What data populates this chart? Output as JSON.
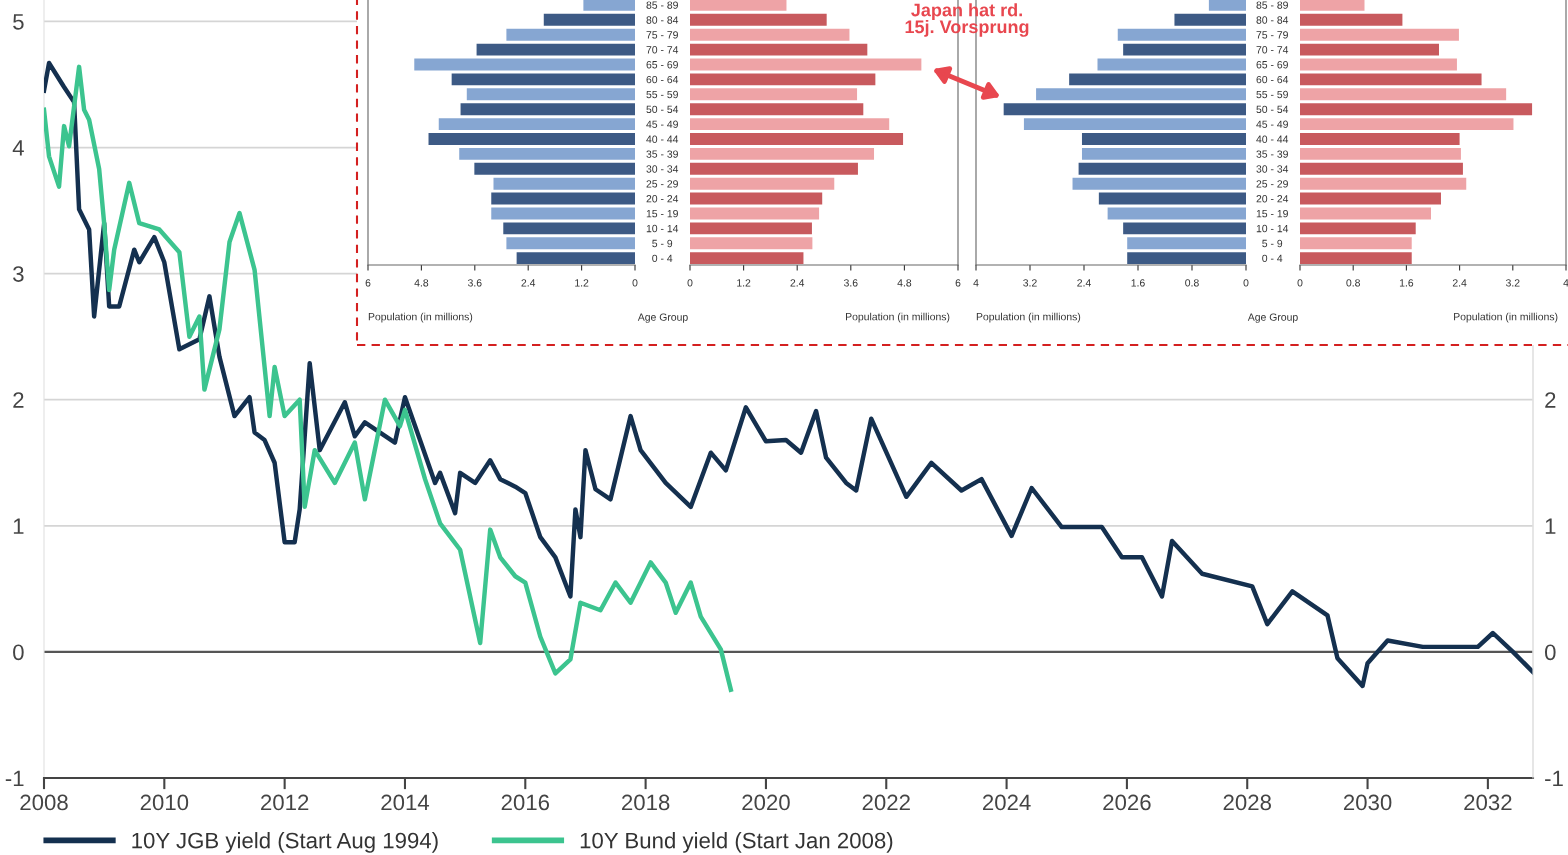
{
  "chart_data": [
    {
      "type": "line",
      "xlim": [
        "2008-01",
        "2032-10"
      ],
      "xticks": [
        "2008",
        "2010",
        "2012",
        "2014",
        "2016",
        "2018",
        "2020",
        "2022",
        "2024",
        "2026",
        "2028",
        "2030",
        "2032"
      ],
      "ylim": [
        -1,
        5.17
      ],
      "yticks": [
        -1,
        0,
        1,
        2,
        3,
        4,
        5
      ],
      "y2lim": [
        -1,
        5.17
      ],
      "y2ticks": [
        -1,
        0,
        1,
        2
      ],
      "grid": "y",
      "legend": "bottom",
      "line_style": "solid",
      "ref_lines": [
        {
          "axis": "y",
          "value": 0,
          "color": "#555555"
        }
      ],
      "annotations": [
        "Japan hat rd.\n15j. Vorsprung"
      ],
      "series": [
        {
          "name": "10Y JGB yield (Start Aug 1994)",
          "color": "#14304f",
          "x": [
            "2008-01",
            "2008-02",
            "2008-05",
            "2008-07",
            "2008-08",
            "2008-10",
            "2008-11",
            "2009-01",
            "2009-02",
            "2009-04",
            "2009-07",
            "2009-08",
            "2009-11",
            "2010-01",
            "2010-04",
            "2010-08",
            "2010-10",
            "2010-12",
            "2011-03",
            "2011-06",
            "2011-07",
            "2011-09",
            "2011-11",
            "2012-01",
            "2012-03",
            "2012-04",
            "2012-06",
            "2012-08",
            "2013-01",
            "2013-03",
            "2013-05",
            "2013-11",
            "2014-01",
            "2014-04",
            "2014-07",
            "2014-08",
            "2014-11",
            "2014-12",
            "2015-03",
            "2015-06",
            "2015-08",
            "2015-11",
            "2016-01",
            "2016-04",
            "2016-07",
            "2016-10",
            "2016-11",
            "2016-12",
            "2017-01",
            "2017-03",
            "2017-06",
            "2017-10",
            "2017-12",
            "2018-05",
            "2018-10",
            "2019-02",
            "2019-05",
            "2019-09",
            "2020-01",
            "2020-05",
            "2020-08",
            "2020-11",
            "2021-01",
            "2021-05",
            "2021-07",
            "2021-10",
            "2022-05",
            "2022-10",
            "2023-04",
            "2023-08",
            "2024-02",
            "2024-06",
            "2024-12",
            "2025-08",
            "2025-12",
            "2026-04",
            "2026-08",
            "2026-10",
            "2027-04",
            "2028-02",
            "2028-05",
            "2028-10",
            "2029-05",
            "2029-07",
            "2029-12",
            "2030-01",
            "2030-05",
            "2030-12",
            "2031-11",
            "2032-02",
            "2032-06",
            "2032-10"
          ],
          "values": [
            4.45,
            4.67,
            4.48,
            4.36,
            3.51,
            3.35,
            2.66,
            3.4,
            2.74,
            2.74,
            3.19,
            3.09,
            3.29,
            3.09,
            2.4,
            2.48,
            2.82,
            2.34,
            1.87,
            2.02,
            1.74,
            1.68,
            1.5,
            0.87,
            0.87,
            1.13,
            2.29,
            1.6,
            1.98,
            1.71,
            1.82,
            1.66,
            2.02,
            1.68,
            1.34,
            1.42,
            1.1,
            1.42,
            1.34,
            1.52,
            1.37,
            1.31,
            1.26,
            0.91,
            0.75,
            0.44,
            1.13,
            0.91,
            1.6,
            1.29,
            1.21,
            1.87,
            1.6,
            1.34,
            1.15,
            1.58,
            1.44,
            1.94,
            1.67,
            1.68,
            1.58,
            1.91,
            1.54,
            1.34,
            1.28,
            1.85,
            1.23,
            1.5,
            1.28,
            1.37,
            0.92,
            1.3,
            0.99,
            0.99,
            0.75,
            0.75,
            0.44,
            0.88,
            0.62,
            0.52,
            0.22,
            0.48,
            0.29,
            -0.05,
            -0.27,
            -0.09,
            0.09,
            0.04,
            0.04,
            0.15,
            0.0,
            -0.16
          ]
        },
        {
          "name": "10Y Bund yield (Start Jan 2008)",
          "color": "#3cc48f",
          "x": [
            "2008-01",
            "2008-02",
            "2008-04",
            "2008-05",
            "2008-06",
            "2008-08",
            "2008-09",
            "2008-10",
            "2008-12",
            "2009-01",
            "2009-02",
            "2009-03",
            "2009-06",
            "2009-08",
            "2009-12",
            "2010-04",
            "2010-06",
            "2010-08",
            "2010-09",
            "2010-12",
            "2011-02",
            "2011-04",
            "2011-07",
            "2011-09",
            "2011-10",
            "2011-11",
            "2012-01",
            "2012-04",
            "2012-05",
            "2012-07",
            "2012-11",
            "2013-03",
            "2013-05",
            "2013-09",
            "2013-12",
            "2014-01",
            "2014-05",
            "2014-08",
            "2014-12",
            "2015-04",
            "2015-06",
            "2015-08",
            "2015-11",
            "2016-01",
            "2016-04",
            "2016-07",
            "2016-10",
            "2016-12",
            "2017-04",
            "2017-07",
            "2017-10",
            "2018-02",
            "2018-05",
            "2018-07",
            "2018-10",
            "2018-12",
            "2019-04",
            "2019-06"
          ],
          "values": [
            4.3,
            3.93,
            3.69,
            4.17,
            4.01,
            4.64,
            4.3,
            4.22,
            3.83,
            3.4,
            2.87,
            3.19,
            3.72,
            3.4,
            3.35,
            3.17,
            2.5,
            2.66,
            2.08,
            2.56,
            3.25,
            3.48,
            3.03,
            2.26,
            1.87,
            2.26,
            1.87,
            2.0,
            1.15,
            1.6,
            1.34,
            1.66,
            1.21,
            2.0,
            1.79,
            1.92,
            1.37,
            1.02,
            0.81,
            0.07,
            0.97,
            0.75,
            0.6,
            0.55,
            0.12,
            -0.17,
            -0.06,
            0.39,
            0.33,
            0.55,
            0.39,
            0.71,
            0.55,
            0.31,
            0.55,
            0.28,
            0.02,
            -0.3
          ]
        }
      ]
    },
    {
      "type": "bar",
      "orientation": "horizontal",
      "tick_labels": "x",
      "categories": [
        null,
        null,
        null,
        null,
        null,
        null,
        null,
        null,
        null,
        null,
        null,
        null,
        null,
        null,
        null,
        null,
        null,
        null
      ],
      "values": [
        1.16,
        2.05,
        2.89,
        3.56,
        4.96,
        4.12,
        3.78,
        3.92,
        4.41,
        4.64,
        3.95,
        3.61,
        3.18,
        3.23,
        3.23,
        2.96,
        2.89,
        2.66
      ],
      "colors": [
        "#86a6d2",
        "#3d5a85",
        "#86a6d2",
        "#3d5a85",
        "#86a6d2",
        "#3d5a85",
        "#86a6d2",
        "#3d5a85",
        "#86a6d2",
        "#3d5a85",
        "#86a6d2",
        "#3d5a85",
        "#86a6d2",
        "#3d5a85",
        "#86a6d2",
        "#3d5a85",
        "#86a6d2",
        "#3d5a85"
      ],
      "xlim": [
        6,
        0
      ],
      "xticks": [
        6,
        4.8,
        3.6,
        2.4,
        1.2,
        0
      ],
      "xlabel": "Population (in millions)"
    },
    {
      "type": "bar",
      "orientation": "horizontal",
      "categories": [
        "85 - 89",
        "80 - 84",
        "75 - 79",
        "70 - 74",
        "65 - 69",
        "60 - 64",
        "55 - 59",
        "50 - 54",
        "45 - 49",
        "40 - 44",
        "35 - 39",
        "30 - 34",
        "25 - 29",
        "20 - 24",
        "15 - 19",
        "10 - 14",
        "5 - 9",
        "0 - 4"
      ],
      "values": [
        2.16,
        3.06,
        3.57,
        3.97,
        5.18,
        4.15,
        3.74,
        3.88,
        4.46,
        4.77,
        4.12,
        3.76,
        3.23,
        2.96,
        2.89,
        2.73,
        2.74,
        2.54
      ],
      "colors": [
        "#eea3a6",
        "#c85a5e",
        "#eea3a6",
        "#c85a5e",
        "#eea3a6",
        "#c85a5e",
        "#eea3a6",
        "#c85a5e",
        "#eea3a6",
        "#c85a5e",
        "#eea3a6",
        "#c85a5e",
        "#eea3a6",
        "#c85a5e",
        "#eea3a6",
        "#c85a5e",
        "#eea3a6",
        "#c85a5e"
      ],
      "xlim": [
        0,
        6
      ],
      "xticks": [
        0,
        1.2,
        2.4,
        3.6,
        4.8,
        6
      ],
      "xlabel": "Population (in millions)",
      "ylabel": "Age Group"
    },
    {
      "type": "bar",
      "orientation": "horizontal",
      "tick_labels": "x",
      "categories": [
        null,
        null,
        null,
        null,
        null,
        null,
        null,
        null,
        null,
        null,
        null,
        null,
        null,
        null,
        null,
        null,
        null,
        null
      ],
      "values": [
        0.55,
        1.06,
        1.9,
        1.82,
        2.2,
        2.62,
        3.11,
        3.59,
        3.29,
        2.43,
        2.43,
        2.48,
        2.57,
        2.18,
        2.05,
        1.82,
        1.76,
        1.76
      ],
      "colors": [
        "#86a6d2",
        "#3d5a85",
        "#86a6d2",
        "#3d5a85",
        "#86a6d2",
        "#3d5a85",
        "#86a6d2",
        "#3d5a85",
        "#86a6d2",
        "#3d5a85",
        "#86a6d2",
        "#3d5a85",
        "#86a6d2",
        "#3d5a85",
        "#86a6d2",
        "#3d5a85",
        "#86a6d2",
        "#3d5a85"
      ],
      "xlim": [
        4,
        0
      ],
      "xticks": [
        4,
        3.2,
        2.4,
        1.6,
        0.8,
        0
      ],
      "xlabel": "Population (in millions)"
    },
    {
      "type": "bar",
      "orientation": "horizontal",
      "categories": [
        "85 - 89",
        "80 - 84",
        "75 - 79",
        "70 - 74",
        "65 - 69",
        "60 - 64",
        "55 - 59",
        "50 - 54",
        "45 - 49",
        "40 - 44",
        "35 - 39",
        "30 - 34",
        "25 - 29",
        "20 - 24",
        "15 - 19",
        "10 - 14",
        "5 - 9",
        "0 - 4"
      ],
      "values": [
        0.97,
        1.54,
        2.39,
        2.09,
        2.36,
        2.73,
        3.1,
        3.49,
        3.21,
        2.4,
        2.42,
        2.45,
        2.5,
        2.12,
        1.97,
        1.74,
        1.68,
        1.68
      ],
      "colors": [
        "#eea3a6",
        "#c85a5e",
        "#eea3a6",
        "#c85a5e",
        "#eea3a6",
        "#c85a5e",
        "#eea3a6",
        "#c85a5e",
        "#eea3a6",
        "#c85a5e",
        "#eea3a6",
        "#c85a5e",
        "#eea3a6",
        "#c85a5e",
        "#eea3a6",
        "#c85a5e",
        "#eea3a6",
        "#c85a5e"
      ],
      "xlim": [
        0,
        4
      ],
      "xticks": [
        0,
        0.8,
        1.6,
        2.4,
        3.2,
        4
      ],
      "xlabel": "Population (in millions)",
      "ylabel": "Age Group"
    }
  ]
}
